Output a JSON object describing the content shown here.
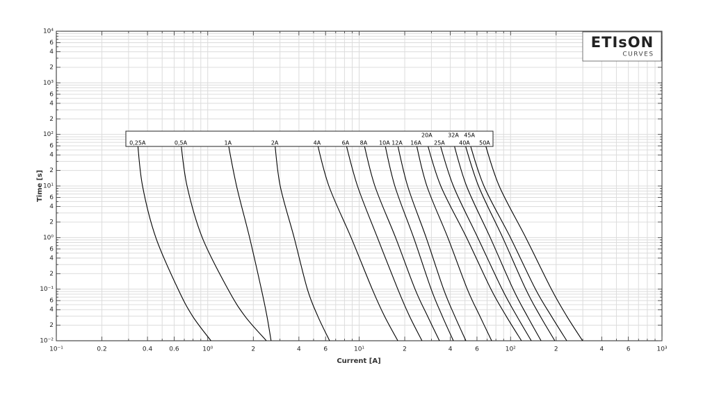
{
  "chart_data": {
    "type": "line",
    "xlabel": "Current [A]",
    "ylabel": "Time [s]",
    "logo": "ETIsON",
    "logo_sub": "CURVES",
    "log_x": true,
    "log_y": true,
    "grid": true,
    "color": "#000000",
    "logo_color": "#b5175e",
    "xlim": [
      0.1,
      1000
    ],
    "ylim": [
      0.01,
      10000
    ],
    "xticks": [
      {
        "value": 0.1,
        "label": "10⁻¹"
      },
      0.2,
      0.4,
      0.6,
      {
        "value": 1,
        "label": "10⁰"
      },
      2,
      4,
      6,
      {
        "value": 10,
        "label": "10¹"
      },
      {
        "value": 20,
        "label": "2"
      },
      {
        "value": 40,
        "label": "4"
      },
      {
        "value": 60,
        "label": "6"
      },
      {
        "value": 100,
        "label": "10²"
      },
      {
        "value": 200,
        "label": "2"
      },
      {
        "value": 400,
        "label": "4"
      },
      {
        "value": 600,
        "label": "6"
      },
      {
        "value": 1000,
        "label": "10³"
      }
    ],
    "xminor": [
      0.3,
      0.5,
      0.7,
      0.8,
      0.9,
      3,
      5,
      7,
      8,
      9,
      30,
      50,
      70,
      80,
      90,
      300,
      500,
      700,
      800,
      900
    ],
    "yticks": [
      {
        "value": 10000,
        "label": "10⁴"
      },
      {
        "value": 6000,
        "label": "6"
      },
      {
        "value": 4000,
        "label": "4"
      },
      {
        "value": 2000,
        "label": "2"
      },
      {
        "value": 1000,
        "label": "10³"
      },
      {
        "value": 600,
        "label": "6"
      },
      {
        "value": 400,
        "label": "4"
      },
      {
        "value": 200,
        "label": "2"
      },
      {
        "value": 100,
        "label": "10²"
      },
      {
        "value": 60,
        "label": "6"
      },
      {
        "value": 40,
        "label": "4"
      },
      {
        "value": 20,
        "label": "2"
      },
      {
        "value": 10,
        "label": "10¹"
      },
      6,
      4,
      2,
      {
        "value": 1,
        "label": "10⁰"
      },
      {
        "value": 0.6,
        "label": "6"
      },
      {
        "value": 0.4,
        "label": "4"
      },
      {
        "value": 0.2,
        "label": "2"
      },
      {
        "value": 0.1,
        "label": "10⁻¹"
      },
      {
        "value": 0.06,
        "label": "6"
      },
      {
        "value": 0.04,
        "label": "4"
      },
      {
        "value": 0.02,
        "label": "2"
      },
      {
        "value": 0.01,
        "label": "10⁻²"
      }
    ],
    "yminor": [
      9000,
      8000,
      7000,
      5000,
      3000,
      900,
      800,
      700,
      500,
      300,
      90,
      80,
      70,
      50,
      30,
      9,
      8,
      7,
      5,
      3,
      0.9,
      0.8,
      0.7,
      0.5,
      0.3,
      0.09,
      0.08,
      0.07,
      0.05,
      0.03
    ],
    "series": [
      {
        "name": "0,25A",
        "x": [
          0.344,
          0.371,
          0.454,
          0.637,
          0.794,
          1.05
        ],
        "values": [
          70,
          10,
          1,
          0.1,
          0.03,
          0.01
        ]
      },
      {
        "name": "0,5A",
        "x": [
          0.664,
          0.73,
          0.92,
          1.36,
          1.76,
          2.44
        ],
        "values": [
          70,
          10,
          1,
          0.1,
          0.03,
          0.01
        ]
      },
      {
        "name": "1A",
        "x": [
          1.36,
          1.55,
          1.89,
          2.26,
          2.46,
          2.62
        ],
        "values": [
          70,
          10,
          1,
          0.1,
          0.03,
          0.01
        ]
      },
      {
        "name": "2A",
        "x": [
          2.77,
          3.01,
          3.72,
          4.55,
          5.33,
          6.38
        ],
        "values": [
          70,
          10,
          1,
          0.1,
          0.03,
          0.01
        ]
      },
      {
        "name": "4A",
        "x": [
          5.27,
          6.31,
          8.85,
          12.2,
          14.7,
          18.0
        ],
        "values": [
          70,
          10,
          1,
          0.1,
          0.03,
          0.01
        ]
      },
      {
        "name": "6A",
        "x": [
          8.13,
          9.75,
          13.2,
          18.0,
          21.5,
          26.0
        ],
        "values": [
          70,
          10,
          1,
          0.1,
          0.03,
          0.01
        ]
      },
      {
        "name": "8A",
        "x": [
          10.7,
          12.7,
          17.4,
          23.4,
          28.3,
          33.9
        ],
        "values": [
          70,
          10,
          1,
          0.1,
          0.03,
          0.01
        ]
      },
      {
        "name": "10A",
        "x": [
          14.7,
          17.2,
          22.9,
          29.9,
          35.4,
          41.9
        ],
        "values": [
          70,
          10,
          1,
          0.1,
          0.03,
          0.01
        ]
      },
      {
        "name": "12A",
        "x": [
          17.8,
          20.9,
          27.7,
          36.1,
          42.8,
          50.7
        ],
        "values": [
          70,
          10,
          1,
          0.1,
          0.03,
          0.01
        ]
      },
      {
        "name": "16A",
        "x": [
          23.7,
          28.0,
          38.5,
          51.8,
          62.7,
          75.0
        ],
        "values": [
          70,
          10,
          1,
          0.1,
          0.03,
          0.01
        ]
      },
      {
        "name": "20A",
        "x": [
          28.0,
          34.6,
          51.2,
          74.2,
          93.6,
          118
        ],
        "values": [
          70,
          10,
          1,
          0.1,
          0.03,
          0.01
        ]
      },
      {
        "name": "25A",
        "x": [
          33.9,
          41.9,
          60.7,
          87.9,
          110,
          137
        ],
        "values": [
          70,
          10,
          1,
          0.1,
          0.03,
          0.01
        ]
      },
      {
        "name": "32A",
        "x": [
          41.9,
          51.2,
          73.4,
          104,
          129,
          159
        ],
        "values": [
          70,
          10,
          1,
          0.1,
          0.03,
          0.01
        ]
      },
      {
        "name": "40A",
        "x": [
          49.6,
          61.4,
          88.7,
          126,
          157,
          196
        ],
        "values": [
          70,
          10,
          1,
          0.1,
          0.03,
          0.01
        ]
      },
      {
        "name": "45A",
        "x": [
          53.5,
          66.7,
          99.8,
          146,
          186,
          235
        ],
        "values": [
          70,
          10,
          1,
          0.1,
          0.03,
          0.01
        ]
      },
      {
        "name": "50A",
        "x": [
          67.4,
          84.1,
          126,
          186,
          235,
          299
        ],
        "values": [
          70,
          10,
          1,
          0.1,
          0.03,
          0.01
        ]
      }
    ]
  }
}
